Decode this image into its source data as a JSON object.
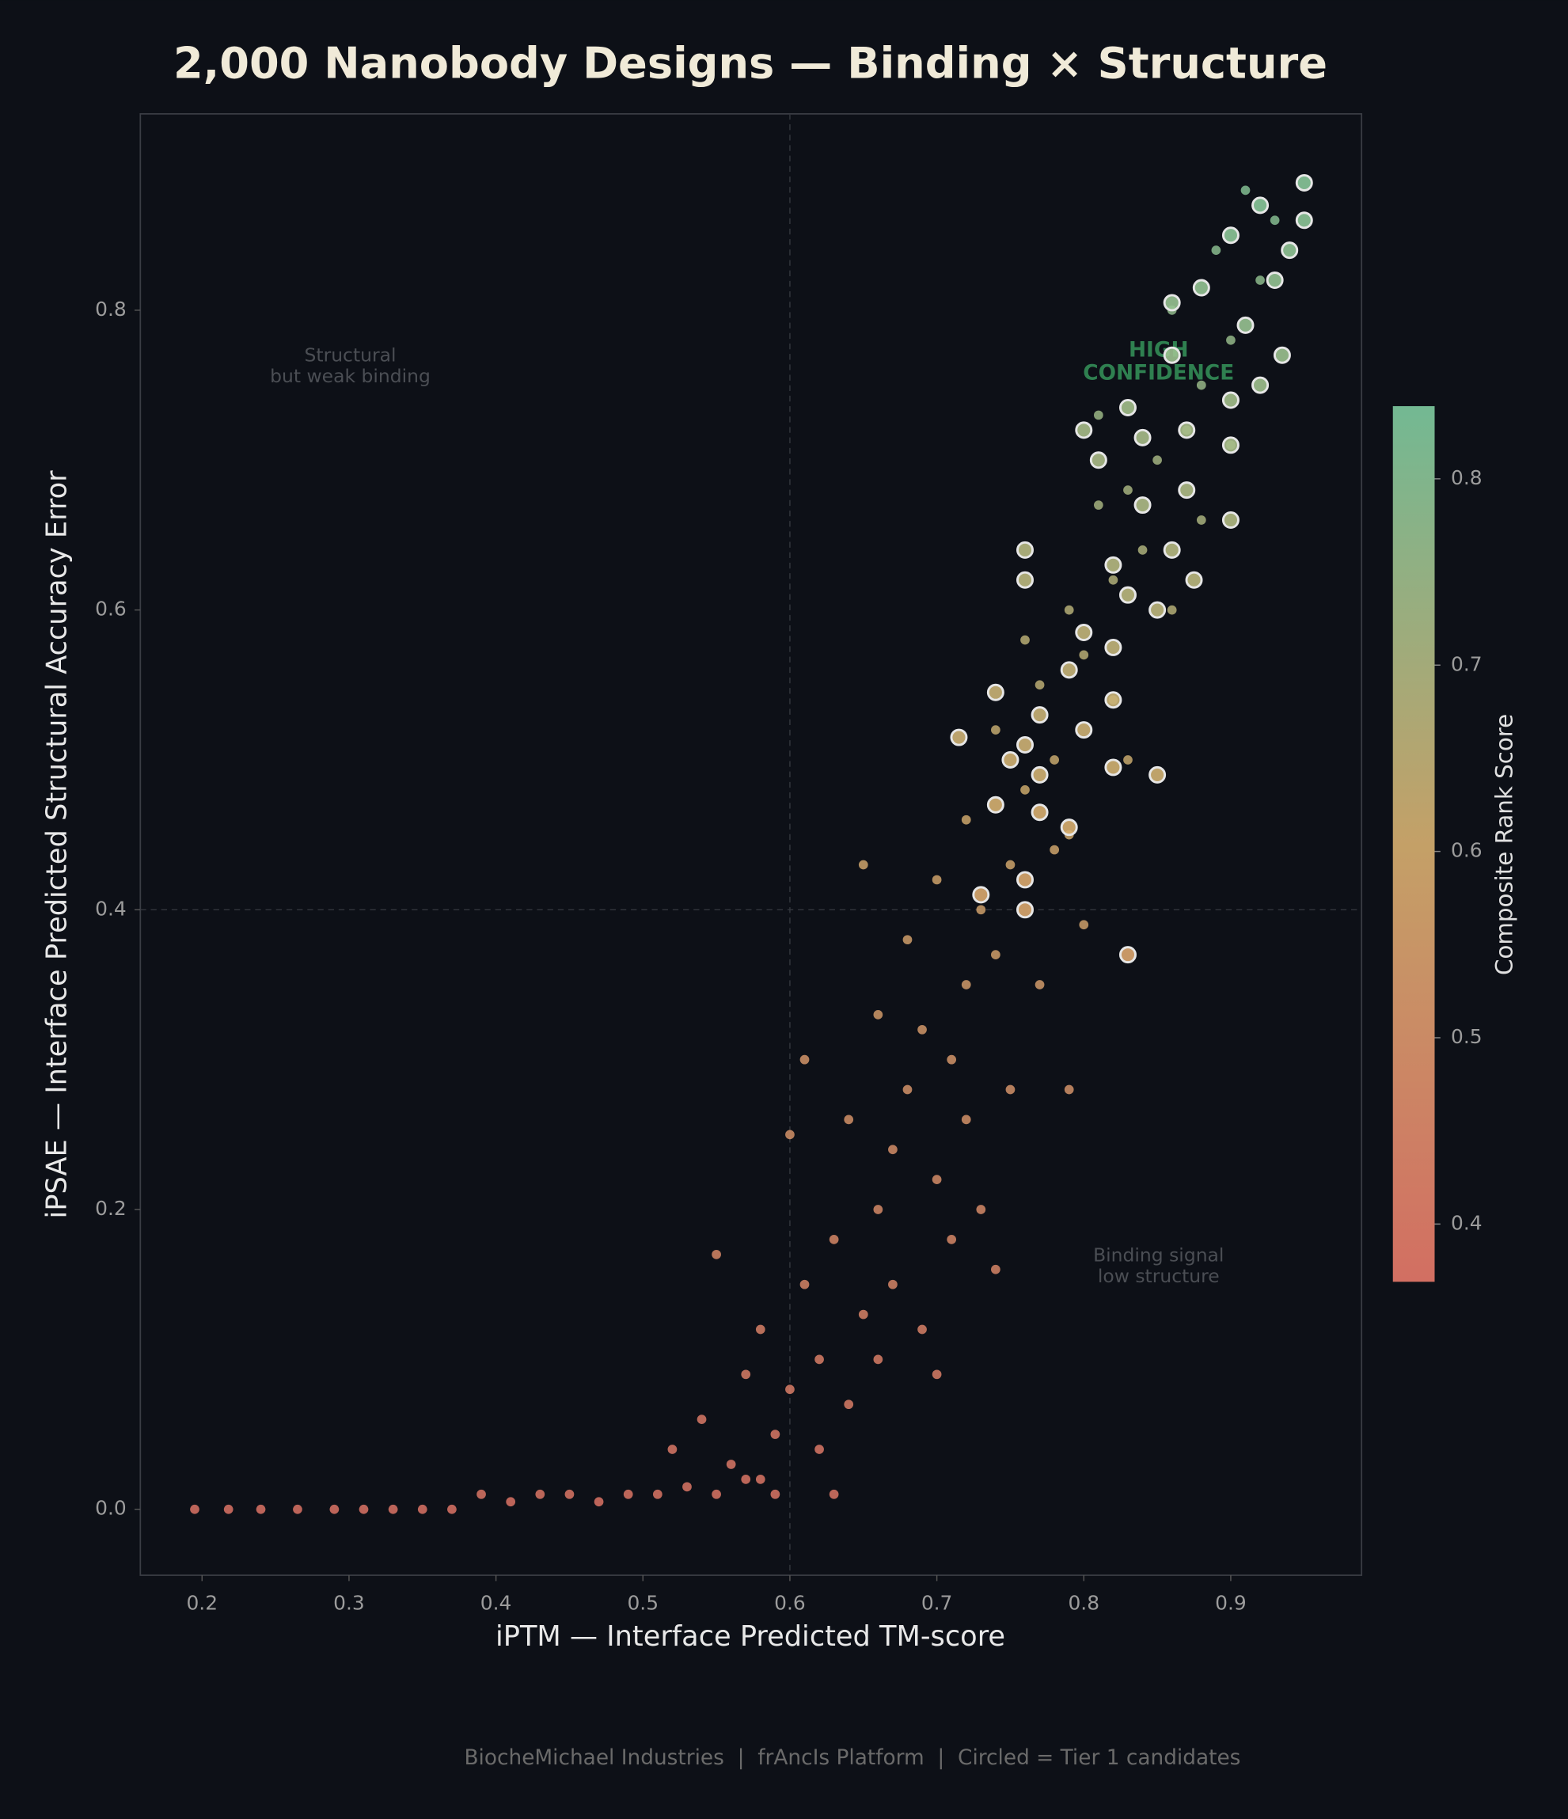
{
  "chart_data": {
    "type": "scatter",
    "title": "2,000 Nanobody Designs — Binding × Structure",
    "x_label": "iPTM — Interface Predicted TM-score",
    "y_label": "iPSAE — Interface Predicted Structural Accuracy Error",
    "xlim": [
      0.158,
      0.989
    ],
    "ylim": [
      -0.044,
      0.931
    ],
    "xticks": [
      0.2,
      0.3,
      0.4,
      0.5,
      0.6,
      0.7,
      0.8,
      0.9
    ],
    "yticks": [
      {
        "value": 0,
        "label": "0.0"
      },
      0.2,
      0.4,
      0.6,
      0.8
    ],
    "reference_x": 0.6,
    "reference_y": 0.4,
    "colorbar": {
      "label": "Composite Rank Score",
      "lim": [
        0.369,
        0.839
      ],
      "ticks": [
        0.4,
        0.5,
        0.6,
        0.7,
        0.8
      ],
      "colormap": [
        "#e8796a",
        "#d8b070",
        "#7ecba0"
      ]
    },
    "annotations": [
      {
        "lines": [
          "Structural",
          "but weak binding"
        ]
      },
      {
        "lines": [
          "HIGH",
          "CONFIDENCE"
        ]
      },
      {
        "lines": [
          "Binding signal",
          "low structure"
        ]
      }
    ],
    "footer": "BiocheMichael Industries  |  frAncIs Platform  |  Circled = Tier 1 candidates",
    "series": [
      {
        "x": [
          0.195,
          0.218,
          0.24,
          0.265,
          0.29,
          0.31,
          0.33,
          0.35,
          0.37,
          0.39,
          0.41,
          0.43,
          0.45,
          0.47,
          0.49,
          0.51,
          0.53,
          0.55,
          0.57,
          0.59,
          0.52,
          0.54,
          0.56,
          0.57,
          0.58,
          0.59,
          0.6,
          0.61,
          0.62,
          0.63,
          0.64,
          0.65,
          0.55,
          0.6,
          0.61,
          0.66,
          0.67,
          0.64,
          0.68,
          0.69,
          0.7,
          0.71,
          0.72,
          0.66,
          0.68,
          0.73,
          0.74,
          0.75,
          0.7,
          0.72,
          0.76,
          0.78,
          0.74,
          0.77,
          0.8,
          0.79,
          0.82,
          0.84,
          0.81,
          0.85,
          0.87,
          0.83,
          0.88,
          0.9,
          0.86,
          0.92,
          0.89,
          0.91,
          0.93,
          0.67,
          0.69,
          0.7,
          0.73,
          0.75,
          0.78,
          0.79,
          0.65,
          0.74,
          0.8,
          0.83,
          0.77,
          0.76,
          0.82,
          0.86,
          0.88,
          0.9,
          0.62,
          0.63,
          0.58,
          0.66,
          0.71,
          0.72,
          0.81,
          0.79
        ],
        "y": [
          0,
          0,
          0,
          0,
          0,
          0,
          0,
          0,
          0,
          0.01,
          0.005,
          0.01,
          0.01,
          0.005,
          0.01,
          0.01,
          0.015,
          0.01,
          0.02,
          0.01,
          0.04,
          0.06,
          0.03,
          0.09,
          0.12,
          0.05,
          0.08,
          0.15,
          0.1,
          0.18,
          0.07,
          0.13,
          0.17,
          0.25,
          0.3,
          0.2,
          0.24,
          0.26,
          0.28,
          0.32,
          0.22,
          0.3,
          0.35,
          0.33,
          0.38,
          0.4,
          0.37,
          0.43,
          0.42,
          0.46,
          0.48,
          0.5,
          0.52,
          0.55,
          0.57,
          0.6,
          0.62,
          0.64,
          0.67,
          0.7,
          0.72,
          0.68,
          0.75,
          0.78,
          0.8,
          0.82,
          0.84,
          0.88,
          0.86,
          0.15,
          0.12,
          0.09,
          0.2,
          0.28,
          0.44,
          0.28,
          0.43,
          0.16,
          0.39,
          0.5,
          0.35,
          0.58,
          0.54,
          0.6,
          0.66,
          0.71,
          0.04,
          0.01,
          0.02,
          0.1,
          0.18,
          0.26,
          0.73,
          0.45
        ],
        "score": [
          0.37,
          0.37,
          0.37,
          0.37,
          0.37,
          0.37,
          0.37,
          0.37,
          0.37,
          0.38,
          0.37,
          0.38,
          0.38,
          0.37,
          0.38,
          0.38,
          0.38,
          0.38,
          0.38,
          0.38,
          0.39,
          0.4,
          0.39,
          0.42,
          0.43,
          0.4,
          0.41,
          0.45,
          0.42,
          0.46,
          0.41,
          0.44,
          0.46,
          0.5,
          0.52,
          0.47,
          0.49,
          0.5,
          0.51,
          0.53,
          0.48,
          0.52,
          0.55,
          0.54,
          0.56,
          0.57,
          0.56,
          0.59,
          0.58,
          0.6,
          0.61,
          0.62,
          0.63,
          0.65,
          0.66,
          0.67,
          0.68,
          0.69,
          0.71,
          0.72,
          0.73,
          0.71,
          0.75,
          0.76,
          0.77,
          0.78,
          0.79,
          0.81,
          0.8,
          0.45,
          0.43,
          0.42,
          0.47,
          0.51,
          0.59,
          0.51,
          0.59,
          0.45,
          0.57,
          0.62,
          0.55,
          0.66,
          0.64,
          0.67,
          0.7,
          0.73,
          0.39,
          0.38,
          0.38,
          0.42,
          0.46,
          0.5,
          0.74,
          0.6
        ]
      },
      {
        "marker": "circled",
        "x": [
          0.95,
          0.95,
          0.92,
          0.94,
          0.93,
          0.9,
          0.88,
          0.86,
          0.91,
          0.935,
          0.92,
          0.9,
          0.87,
          0.84,
          0.83,
          0.8,
          0.81,
          0.84,
          0.87,
          0.9,
          0.9,
          0.86,
          0.82,
          0.83,
          0.85,
          0.875,
          0.82,
          0.8,
          0.79,
          0.82,
          0.8,
          0.77,
          0.76,
          0.75,
          0.77,
          0.74,
          0.77,
          0.79,
          0.76,
          0.76,
          0.73,
          0.715,
          0.74,
          0.76,
          0.76,
          0.83,
          0.85,
          0.82,
          0.86
        ],
        "y": [
          0.885,
          0.86,
          0.87,
          0.84,
          0.82,
          0.85,
          0.815,
          0.805,
          0.79,
          0.77,
          0.75,
          0.74,
          0.72,
          0.715,
          0.735,
          0.72,
          0.7,
          0.67,
          0.68,
          0.71,
          0.66,
          0.64,
          0.63,
          0.61,
          0.6,
          0.62,
          0.575,
          0.585,
          0.56,
          0.54,
          0.52,
          0.53,
          0.51,
          0.5,
          0.49,
          0.47,
          0.465,
          0.455,
          0.42,
          0.4,
          0.41,
          0.515,
          0.545,
          0.62,
          0.64,
          0.37,
          0.49,
          0.495,
          0.77
        ],
        "score": [
          0.81,
          0.8,
          0.81,
          0.79,
          0.78,
          0.8,
          0.78,
          0.77,
          0.77,
          0.76,
          0.75,
          0.74,
          0.73,
          0.73,
          0.74,
          0.73,
          0.72,
          0.71,
          0.71,
          0.73,
          0.7,
          0.69,
          0.69,
          0.68,
          0.67,
          0.68,
          0.66,
          0.66,
          0.65,
          0.64,
          0.63,
          0.64,
          0.63,
          0.62,
          0.62,
          0.61,
          0.6,
          0.6,
          0.58,
          0.57,
          0.58,
          0.63,
          0.64,
          0.68,
          0.69,
          0.56,
          0.62,
          0.62,
          0.76
        ]
      }
    ]
  }
}
